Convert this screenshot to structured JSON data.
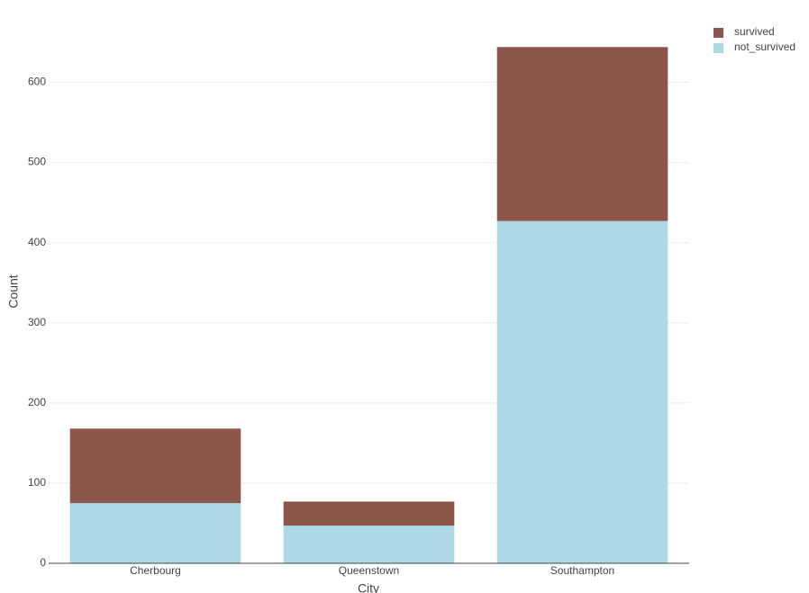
{
  "chart_data": {
    "type": "stacked_bar",
    "x_label": "City",
    "y_label": "Count",
    "categories": [
      "Cherbourg",
      "Queenstown",
      "Southampton"
    ],
    "series": [
      {
        "name": "survived",
        "color": "#8c564b",
        "values": [
          93,
          30,
          217
        ]
      },
      {
        "name": "not_survived",
        "color": "#add8e6",
        "values": [
          75,
          47,
          427
        ]
      }
    ],
    "ylim": [
      0,
      678
    ],
    "yticks": [
      0,
      100,
      200,
      300,
      400,
      500,
      600
    ],
    "grid": true,
    "legend": "outside-top-right"
  }
}
